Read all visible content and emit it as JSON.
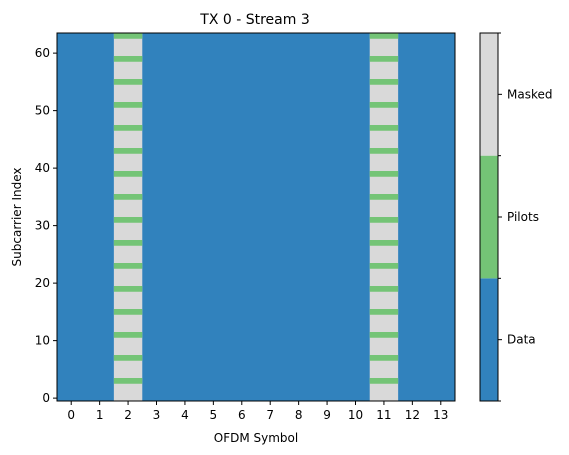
{
  "chart_data": {
    "type": "heatmap",
    "title": "TX 0 - Stream 3",
    "xlabel": "OFDM Symbol",
    "ylabel": "Subcarrier Index",
    "x_ticks": [
      "0",
      "1",
      "2",
      "3",
      "4",
      "5",
      "6",
      "7",
      "8",
      "9",
      "10",
      "11",
      "12",
      "13"
    ],
    "y_ticks": [
      "0",
      "10",
      "20",
      "30",
      "40",
      "50",
      "60"
    ],
    "n_symbols": 14,
    "n_subcarriers": 64,
    "pilot_symbols": [
      2,
      11
    ],
    "pilot_subcarriers": [
      3,
      7,
      11,
      15,
      19,
      23,
      27,
      31,
      35,
      39,
      43,
      47,
      51,
      55,
      59,
      63
    ],
    "categories": [
      "Data",
      "Pilots",
      "Masked"
    ],
    "colors": {
      "Data": "#3182bd",
      "Pilots": "#74c476",
      "Masked": "#d9d9d9"
    },
    "rule": "Pilot OFDM symbols are Masked except at pilot subcarriers, which are Pilots; all other resource elements are Data"
  }
}
